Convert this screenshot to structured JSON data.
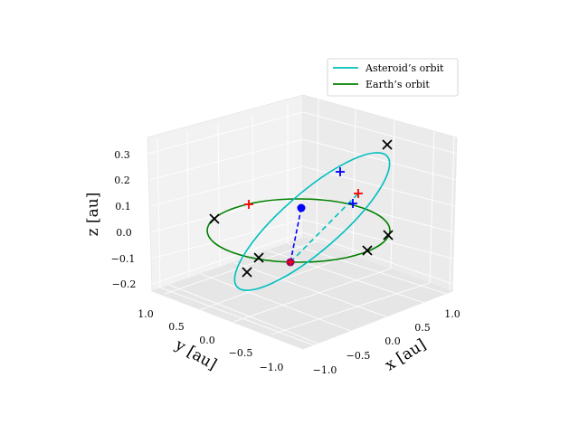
{
  "chart_data": {
    "type": "line",
    "projection": "3d",
    "xlabel": "x [au]",
    "ylabel": "y [au]",
    "zlabel": "z [au]",
    "x_ticks": [
      "−1.0",
      "−0.5",
      "0.0",
      "0.5",
      "1.0"
    ],
    "y_ticks": [
      "1.0",
      "0.5",
      "0.0",
      "−0.5",
      "−1.0"
    ],
    "z_ticks": [
      "0.3",
      "0.2",
      "0.1",
      "0.0",
      "−0.1",
      "−0.2"
    ],
    "grid": true,
    "legend_position": "top-right",
    "series": [
      {
        "name": "Asteroid’s orbit",
        "color": "#00bfbf",
        "kind": "ellipse"
      },
      {
        "name": "Earth’s orbit",
        "color": "#008000",
        "kind": "circle"
      }
    ],
    "colors": {
      "black_markers": "#000000",
      "blue": "#0000ff",
      "red": "#ff0000",
      "purple": "#7f007f"
    }
  }
}
